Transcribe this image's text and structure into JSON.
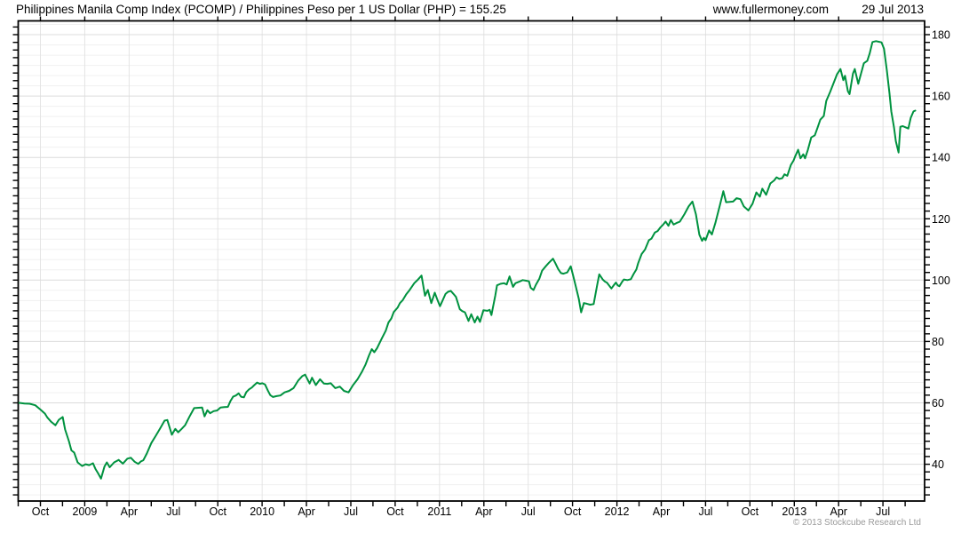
{
  "header": {
    "title": "Philippines Manila Comp Index (PCOMP) / Philippines Peso per 1 US Dollar (PHP) = 155.25",
    "website": "www.fullermoney.com",
    "date": "29 Jul 2013"
  },
  "footer": {
    "copyright": "© 2013 Stockcube Research Ltd"
  },
  "colors": {
    "background": "#ffffff",
    "text": "#000000",
    "line": "#00923f",
    "plot_border": "#000000",
    "grid_major": "#dcdcdc",
    "grid_minor": "#f0f0f0",
    "grid_vertical": "#e4e4e4",
    "copyright_text": "#9a9a9a"
  },
  "chart_data": {
    "type": "line",
    "title": "Philippines Manila Comp Index (PCOMP) / Philippines Peso per 1 US Dollar (PHP)",
    "last_value": 155.25,
    "legend": "none",
    "grid": true,
    "x_axis": {
      "labels": [
        "Oct",
        "2009",
        "Apr",
        "Jul",
        "Oct",
        "2010",
        "Apr",
        "Jul",
        "Oct",
        "2011",
        "Apr",
        "Jul",
        "Oct",
        "2012",
        "Apr",
        "Jul",
        "Oct",
        "2013",
        "Apr",
        "Jul"
      ],
      "start": "Aug 2008",
      "end": "29 Jul 2013",
      "range_weeks": [
        0,
        258
      ]
    },
    "y_axis": {
      "side": "right",
      "ticks": [
        40,
        60,
        80,
        100,
        120,
        140,
        160,
        180
      ],
      "range": [
        28,
        184.5
      ],
      "minor_tick_step": 2.5
    },
    "series": [
      {
        "name": "PCOMP / PHP",
        "frequency": "weekly",
        "points": [
          [
            0.3,
            60
          ],
          [
            1.8,
            59.8
          ],
          [
            3.3,
            59.7
          ],
          [
            4.9,
            59.2
          ],
          [
            6.4,
            57.8
          ],
          [
            7.7,
            56.5
          ],
          [
            8.4,
            55.2
          ],
          [
            9.5,
            53.8
          ],
          [
            10.7,
            52.7
          ],
          [
            11.7,
            54.5
          ],
          [
            12.8,
            55.4
          ],
          [
            13.5,
            51.3
          ],
          [
            14.6,
            47.4
          ],
          [
            15.3,
            44.5
          ],
          [
            16.1,
            43.8
          ],
          [
            17.1,
            40.6
          ],
          [
            18.4,
            39.4
          ],
          [
            19.4,
            40
          ],
          [
            20.4,
            39.7
          ],
          [
            21.5,
            40.3
          ],
          [
            22.2,
            38.5
          ],
          [
            23,
            37
          ],
          [
            23.8,
            35.3
          ],
          [
            24.8,
            39.2
          ],
          [
            25.5,
            40.6
          ],
          [
            26.3,
            39
          ],
          [
            27.6,
            40.6
          ],
          [
            28.9,
            41.4
          ],
          [
            30.1,
            40.2
          ],
          [
            31.4,
            41.8
          ],
          [
            32.4,
            42.1
          ],
          [
            33.5,
            40.8
          ],
          [
            34.5,
            40.1
          ],
          [
            35.3,
            40.9
          ],
          [
            36,
            41.3
          ],
          [
            37,
            43.5
          ],
          [
            38.3,
            46.9
          ],
          [
            39.6,
            49.3
          ],
          [
            40.9,
            51.8
          ],
          [
            42.1,
            54.2
          ],
          [
            42.9,
            54.4
          ],
          [
            44.2,
            49.6
          ],
          [
            45.2,
            51.5
          ],
          [
            46,
            50.4
          ],
          [
            47,
            51.5
          ],
          [
            48,
            52.7
          ],
          [
            49.3,
            55.6
          ],
          [
            50.6,
            58.3
          ],
          [
            51.9,
            58.4
          ],
          [
            52.9,
            58.5
          ],
          [
            53.6,
            55.6
          ],
          [
            54.4,
            57.6
          ],
          [
            55.2,
            56.6
          ],
          [
            56.2,
            57.3
          ],
          [
            57.2,
            57.5
          ],
          [
            58.2,
            58.5
          ],
          [
            59.3,
            58.6
          ],
          [
            60.3,
            58.7
          ],
          [
            61,
            60.5
          ],
          [
            61.8,
            62
          ],
          [
            62.6,
            62.4
          ],
          [
            63.4,
            63.1
          ],
          [
            64.1,
            62
          ],
          [
            64.9,
            61.8
          ],
          [
            65.6,
            63.5
          ],
          [
            66.4,
            64.4
          ],
          [
            67.2,
            65
          ],
          [
            67.9,
            65.8
          ],
          [
            68.7,
            66.6
          ],
          [
            69.5,
            66.2
          ],
          [
            70.2,
            66.4
          ],
          [
            71,
            66
          ],
          [
            71.8,
            64
          ],
          [
            72.5,
            62.5
          ],
          [
            73.3,
            61.9
          ],
          [
            74.3,
            62.2
          ],
          [
            75.4,
            62.4
          ],
          [
            76.6,
            63.4
          ],
          [
            77.9,
            63.9
          ],
          [
            79.2,
            64.8
          ],
          [
            80.5,
            67.2
          ],
          [
            81.7,
            68.7
          ],
          [
            82.5,
            69.2
          ],
          [
            83.8,
            66.3
          ],
          [
            84.5,
            68.2
          ],
          [
            85.6,
            65.8
          ],
          [
            86.8,
            67.7
          ],
          [
            87.9,
            66.3
          ],
          [
            88.9,
            66.2
          ],
          [
            89.9,
            66.4
          ],
          [
            91.2,
            64.8
          ],
          [
            92.5,
            65.3
          ],
          [
            93.7,
            63.9
          ],
          [
            95,
            63.4
          ],
          [
            96.3,
            65.8
          ],
          [
            97.6,
            67.7
          ],
          [
            98.8,
            70
          ],
          [
            99.9,
            72.5
          ],
          [
            100.9,
            75.5
          ],
          [
            101.7,
            77.5
          ],
          [
            102.4,
            76.5
          ],
          [
            103.2,
            77.8
          ],
          [
            104.7,
            81.3
          ],
          [
            105.7,
            83.5
          ],
          [
            106.5,
            86.2
          ],
          [
            107.3,
            87.5
          ],
          [
            108,
            89.6
          ],
          [
            109.1,
            91
          ],
          [
            109.8,
            92.5
          ],
          [
            110.6,
            93.5
          ],
          [
            111.6,
            95.4
          ],
          [
            112.4,
            96.5
          ],
          [
            113.2,
            97.8
          ],
          [
            113.9,
            99
          ],
          [
            115,
            100.2
          ],
          [
            116,
            101.5
          ],
          [
            117,
            94.9
          ],
          [
            117.8,
            96.8
          ],
          [
            118.8,
            92.5
          ],
          [
            119.8,
            95.9
          ],
          [
            120.6,
            93.5
          ],
          [
            121.3,
            91.5
          ],
          [
            122.1,
            93.5
          ],
          [
            122.9,
            95.5
          ],
          [
            123.6,
            96.2
          ],
          [
            124.4,
            96.5
          ],
          [
            125.2,
            95.5
          ],
          [
            125.9,
            94.5
          ],
          [
            127,
            90.5
          ],
          [
            127.7,
            89.9
          ],
          [
            128.5,
            89.5
          ],
          [
            129.5,
            86.7
          ],
          [
            130.3,
            88.9
          ],
          [
            131.3,
            86.2
          ],
          [
            132.1,
            88.1
          ],
          [
            132.8,
            86.4
          ],
          [
            133.8,
            90.2
          ],
          [
            134.9,
            90
          ],
          [
            135.6,
            90.3
          ],
          [
            136.1,
            88.6
          ],
          [
            137.2,
            94.9
          ],
          [
            137.7,
            98.3
          ],
          [
            138.7,
            98.8
          ],
          [
            139.7,
            99
          ],
          [
            140.5,
            98.6
          ],
          [
            141.3,
            101.2
          ],
          [
            142.3,
            97.8
          ],
          [
            143,
            99
          ],
          [
            144.1,
            99.5
          ],
          [
            145.1,
            100
          ],
          [
            146.1,
            99.8
          ],
          [
            146.9,
            99.6
          ],
          [
            147.4,
            97.5
          ],
          [
            148.2,
            96.8
          ],
          [
            148.9,
            98.5
          ],
          [
            149.9,
            100.5
          ],
          [
            150.7,
            103.1
          ],
          [
            151.7,
            104.5
          ],
          [
            152.5,
            105.5
          ],
          [
            153.8,
            107
          ],
          [
            154.5,
            105.5
          ],
          [
            155.3,
            103.6
          ],
          [
            156.1,
            102.3
          ],
          [
            156.8,
            102.1
          ],
          [
            157.9,
            102.5
          ],
          [
            158.9,
            104.5
          ],
          [
            159.6,
            101.5
          ],
          [
            160.4,
            97.8
          ],
          [
            161.2,
            94
          ],
          [
            161.9,
            89.5
          ],
          [
            162.7,
            92.5
          ],
          [
            163.5,
            92.3
          ],
          [
            164.5,
            92
          ],
          [
            165.5,
            92.2
          ],
          [
            166.5,
            98.3
          ],
          [
            167.1,
            101.9
          ],
          [
            168.1,
            100.2
          ],
          [
            168.8,
            99.5
          ],
          [
            169.3,
            99.2
          ],
          [
            170.1,
            98
          ],
          [
            170.6,
            97.3
          ],
          [
            171.4,
            98.5
          ],
          [
            171.9,
            99.2
          ],
          [
            172.4,
            98.3
          ],
          [
            172.9,
            98
          ],
          [
            173.7,
            99.5
          ],
          [
            174.2,
            100.2
          ],
          [
            175.2,
            100
          ],
          [
            176.2,
            100.3
          ],
          [
            177,
            102
          ],
          [
            177.8,
            103.5
          ],
          [
            178.3,
            105.5
          ],
          [
            179.3,
            108.5
          ],
          [
            180.3,
            110
          ],
          [
            181.4,
            113
          ],
          [
            182.1,
            113.5
          ],
          [
            183.1,
            115.5
          ],
          [
            183.9,
            116
          ],
          [
            184.7,
            117.2
          ],
          [
            185.4,
            118
          ],
          [
            186.2,
            119.1
          ],
          [
            187,
            117.7
          ],
          [
            187.7,
            119.6
          ],
          [
            188.5,
            118.1
          ],
          [
            189.3,
            118.6
          ],
          [
            190.3,
            119.1
          ],
          [
            191.6,
            121.5
          ],
          [
            192.8,
            124
          ],
          [
            193.9,
            125.6
          ],
          [
            194.9,
            121.5
          ],
          [
            195.9,
            114.8
          ],
          [
            196.7,
            112.8
          ],
          [
            197.2,
            113.8
          ],
          [
            197.7,
            113
          ],
          [
            198.7,
            116.2
          ],
          [
            199.5,
            114.9
          ],
          [
            200.5,
            118.6
          ],
          [
            201.8,
            124.4
          ],
          [
            202.8,
            129
          ],
          [
            203.6,
            125.4
          ],
          [
            204.6,
            125.5
          ],
          [
            205.6,
            125.6
          ],
          [
            206.6,
            126.7
          ],
          [
            207.7,
            126.4
          ],
          [
            208.7,
            124
          ],
          [
            210,
            122.7
          ],
          [
            211.2,
            124.9
          ],
          [
            212.3,
            128.6
          ],
          [
            213.3,
            127.2
          ],
          [
            214,
            129.8
          ],
          [
            215.1,
            127.8
          ],
          [
            216.3,
            131.5
          ],
          [
            217.4,
            132.5
          ],
          [
            218.1,
            133.5
          ],
          [
            218.9,
            133
          ],
          [
            219.7,
            133.2
          ],
          [
            220.4,
            134.5
          ],
          [
            221.2,
            134
          ],
          [
            222.2,
            137.5
          ],
          [
            223,
            139
          ],
          [
            223.5,
            140.4
          ],
          [
            224.3,
            142.5
          ],
          [
            225,
            139.7
          ],
          [
            225.8,
            141
          ],
          [
            226.3,
            139.7
          ],
          [
            227.1,
            142.4
          ],
          [
            228.1,
            146.5
          ],
          [
            229.1,
            147.2
          ],
          [
            229.9,
            149.7
          ],
          [
            230.7,
            152.3
          ],
          [
            231.7,
            153.5
          ],
          [
            232.4,
            158.4
          ],
          [
            233.5,
            161.3
          ],
          [
            234.5,
            164.2
          ],
          [
            235.5,
            167.1
          ],
          [
            236.5,
            168.8
          ],
          [
            237.3,
            165.2
          ],
          [
            237.8,
            166.6
          ],
          [
            238.6,
            161.6
          ],
          [
            239.1,
            160.6
          ],
          [
            240.1,
            167.4
          ],
          [
            240.6,
            168.8
          ],
          [
            241.6,
            164
          ],
          [
            242.1,
            166.1
          ],
          [
            243.2,
            170.7
          ],
          [
            244.2,
            171.5
          ],
          [
            244.9,
            173.9
          ],
          [
            245.7,
            177.6
          ],
          [
            246.7,
            177.9
          ],
          [
            247.5,
            177.7
          ],
          [
            248.3,
            177.5
          ],
          [
            249,
            175.4
          ],
          [
            249.8,
            168.6
          ],
          [
            250.6,
            160.8
          ],
          [
            251.1,
            155
          ],
          [
            251.9,
            149.7
          ],
          [
            252.4,
            145.3
          ],
          [
            253.2,
            141.6
          ],
          [
            253.7,
            150
          ],
          [
            254.4,
            150.2
          ],
          [
            255.2,
            149.8
          ],
          [
            256,
            149.4
          ],
          [
            256.7,
            152.9
          ],
          [
            257.5,
            155
          ],
          [
            258,
            155.25
          ]
        ]
      }
    ]
  }
}
